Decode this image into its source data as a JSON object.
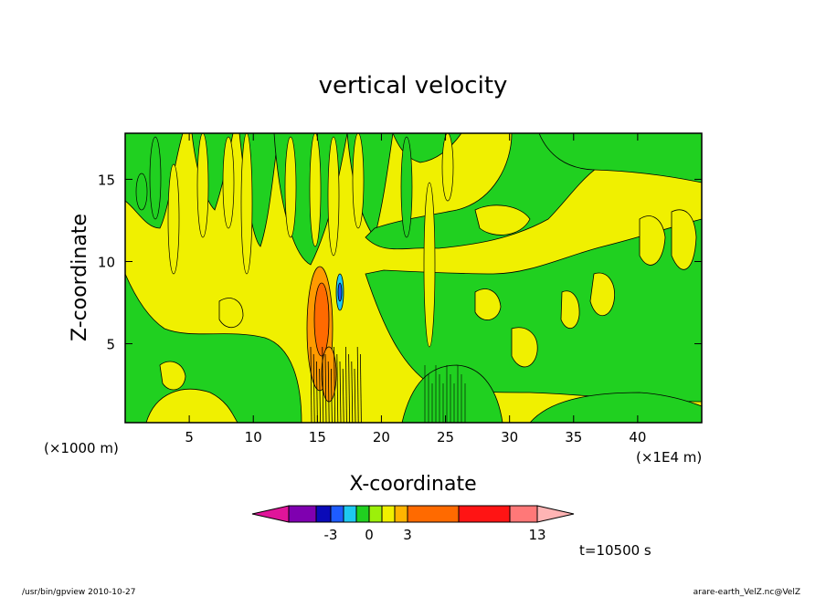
{
  "chart_data": {
    "type": "heatmap",
    "title": "vertical velocity",
    "xlabel": "X-coordinate",
    "ylabel": "Z-coordinate",
    "x_unit": "(×1E4 m)",
    "y_unit": "(×1000 m)",
    "xlim": [
      0,
      45
    ],
    "ylim": [
      0.2,
      17.8
    ],
    "x_ticks": [
      5,
      10,
      15,
      20,
      25,
      30,
      35,
      40
    ],
    "y_ticks": [
      5,
      10,
      15
    ],
    "x_tick_labels": [
      "5",
      "10",
      "15",
      "20",
      "25",
      "30",
      "35",
      "40"
    ],
    "y_tick_labels": [
      "5",
      "10",
      "15"
    ],
    "colorbar": {
      "colors": [
        "#e0149a",
        "#7f00b0",
        "#0a0ab8",
        "#1e5cff",
        "#1ec8f0",
        "#20d020",
        "#9cf00a",
        "#f0f000",
        "#ffb400",
        "#ff6a00",
        "#ff1414",
        "#ff7878",
        "#ffb4b4"
      ],
      "labels": [
        "-3",
        "0",
        "3",
        "13"
      ],
      "label_values": [
        -3,
        0,
        3,
        13
      ]
    },
    "background_colors": {
      "positive": "#f0f000",
      "negative": "#20d020",
      "strong_positive": "#ff9a00",
      "strong_negative": "#1ec8f0"
    },
    "annotation_time": "t=10500 s"
  },
  "footer": {
    "left": "/usr/bin/gpview   2010-10-27",
    "right": "arare-earth_VelZ.nc@VelZ"
  }
}
